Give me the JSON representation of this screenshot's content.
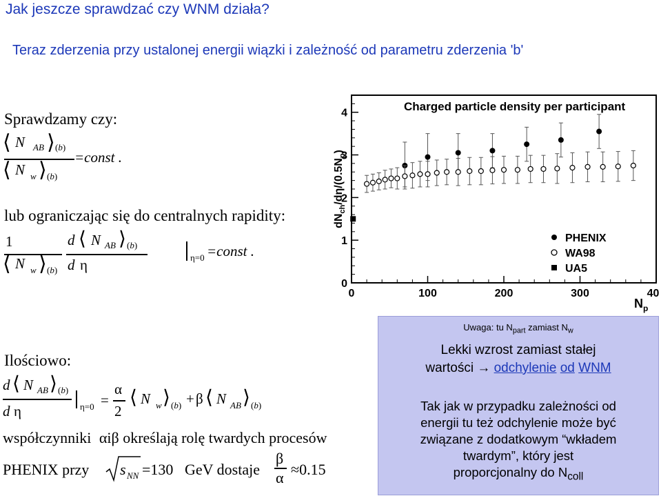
{
  "slide": {
    "title": "Jak jeszcze sprawdzać czy WNM działa?",
    "subtitle": "Teraz zderzenia przy ustalonej energii wiązki i zależność od parametru zderzenia 'b'",
    "check_label": "Sprawdzamy czy:",
    "central_label": "lub ograniczając się do centralnych rapidity:",
    "quant_label": "Ilościowo:",
    "coeff_text": "współczynniki",
    "coeff_i": "i",
    "coeff_rest": "określają rolę twardych procesów",
    "phenix_prefix": "PHENIX przy",
    "phenix_value": "=130",
    "phenix_unit": "GeV dostaje",
    "phenix_result": "≈0.15"
  },
  "math": {
    "N": "N",
    "AB": "AB",
    "w": "w",
    "b": "b",
    "const": "=const .",
    "one": "1",
    "d": "d",
    "eta": "η",
    "eta0": "η=0",
    "alpha": "α",
    "beta": "β",
    "two": "2",
    "eq": "=",
    "plus": "+",
    "s": "s",
    "NN": "NN"
  },
  "figure": {
    "title": "Charged particle density per participant",
    "ylabel": "dN",
    "ylabel_sub": "ch",
    "ylabel_rest": "/dη/(0.5N",
    "ylabel_sub2": "p",
    "ylabel_end": ")",
    "xlabel": "N",
    "xlabel_sub": "p",
    "x_ticks": [
      "0",
      "100",
      "200",
      "300",
      "400"
    ],
    "y_ticks": [
      "0",
      "1",
      "2",
      "3",
      "4"
    ],
    "legend": [
      "PHENIX",
      "WA98",
      "UA5"
    ]
  },
  "chart_data": {
    "type": "scatter",
    "title": "Charged particle density per participant",
    "xlabel": "Np",
    "ylabel": "dNch/dη/(0.5Np)",
    "xlim": [
      0,
      400
    ],
    "ylim": [
      0,
      4.4
    ],
    "grid": false,
    "legend_position": "bottom-right",
    "series": [
      {
        "name": "PHENIX",
        "marker": "filled-circle",
        "x": [
          70,
          100,
          140,
          185,
          230,
          275,
          325
        ],
        "y": [
          2.75,
          2.95,
          3.05,
          3.1,
          3.25,
          3.35,
          3.55
        ],
        "err": [
          0.55,
          0.55,
          0.45,
          0.4,
          0.4,
          0.4,
          0.4
        ]
      },
      {
        "name": "WA98",
        "marker": "open-circle",
        "x": [
          20,
          28,
          36,
          44,
          52,
          60,
          70,
          80,
          90,
          100,
          112,
          125,
          140,
          155,
          170,
          185,
          200,
          218,
          235,
          252,
          270,
          290,
          310,
          330,
          350,
          370
        ],
        "y": [
          2.32,
          2.35,
          2.38,
          2.42,
          2.45,
          2.45,
          2.5,
          2.52,
          2.55,
          2.55,
          2.58,
          2.6,
          2.6,
          2.62,
          2.62,
          2.64,
          2.65,
          2.65,
          2.67,
          2.67,
          2.68,
          2.7,
          2.72,
          2.72,
          2.73,
          2.75
        ],
        "err": [
          0.2,
          0.2,
          0.2,
          0.22,
          0.22,
          0.25,
          0.25,
          0.3,
          0.3,
          0.3,
          0.3,
          0.3,
          0.32,
          0.32,
          0.32,
          0.32,
          0.32,
          0.32,
          0.32,
          0.32,
          0.35,
          0.35,
          0.35,
          0.35,
          0.35,
          0.35
        ]
      },
      {
        "name": "UA5",
        "marker": "filled-square",
        "x": [
          2
        ],
        "y": [
          1.5
        ],
        "err": [
          0
        ]
      }
    ]
  },
  "note": {
    "hint_prefix": "Uwaga: tu N",
    "hint_sub1": "part",
    "hint_mid": " zamiast N",
    "hint_sub2": "w",
    "line1": "Lekki wzrost zamiast stałej",
    "line2_prefix": "wartości",
    "arrow": "→",
    "link1": "odchylenie",
    "link2": "od",
    "link3": "WNM",
    "body1": "Tak jak w przypadku zależności od",
    "body2": "energii tu też odchylenie może być",
    "body3": "związane z dodatkowym “wkładem",
    "body4": "twardym”, który jest",
    "body5_prefix": "proporcjonalny do N",
    "body5_sub": "coll"
  }
}
